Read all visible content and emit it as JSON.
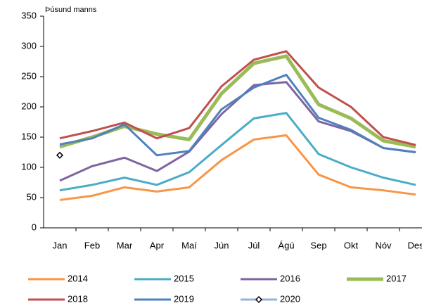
{
  "chart_data": {
    "type": "line",
    "y_label": "Þúsund manns",
    "categories": [
      "Jan",
      "Feb",
      "Mar",
      "Apr",
      "Maí",
      "Jún",
      "Júl",
      "Ágú",
      "Sep",
      "Okt",
      "Nóv",
      "Des"
    ],
    "series": [
      {
        "name": "2014",
        "color": "#f79646",
        "values": [
          46,
          53,
          67,
          60,
          67,
          112,
          146,
          153,
          88,
          67,
          62,
          55
        ]
      },
      {
        "name": "2015",
        "color": "#4bacc6",
        "values": [
          62,
          71,
          83,
          71,
          92,
          137,
          181,
          190,
          122,
          100,
          83,
          71
        ]
      },
      {
        "name": "2016",
        "color": "#8064a2",
        "values": [
          78,
          102,
          116,
          94,
          126,
          188,
          236,
          241,
          176,
          160,
          132,
          125
        ]
      },
      {
        "name": "2017",
        "color": "#9bbb59",
        "values": [
          134,
          150,
          168,
          155,
          146,
          222,
          272,
          284,
          204,
          181,
          144,
          134
        ]
      },
      {
        "name": "2018",
        "color": "#c0504d",
        "values": [
          148,
          160,
          174,
          148,
          165,
          234,
          278,
          292,
          232,
          200,
          150,
          137
        ]
      },
      {
        "name": "2019",
        "color": "#4f81bd",
        "values": [
          138,
          148,
          171,
          120,
          127,
          196,
          232,
          253,
          182,
          162,
          132,
          125
        ]
      },
      {
        "name": "2020",
        "color": "#95b3d7",
        "marker": "diamond",
        "values": [
          120,
          null,
          null,
          null,
          null,
          null,
          null,
          null,
          null,
          null,
          null,
          null
        ]
      }
    ],
    "ylim": [
      0,
      350
    ],
    "yticks": [
      0,
      50,
      100,
      150,
      200,
      250,
      300,
      350
    ],
    "grid": false
  }
}
